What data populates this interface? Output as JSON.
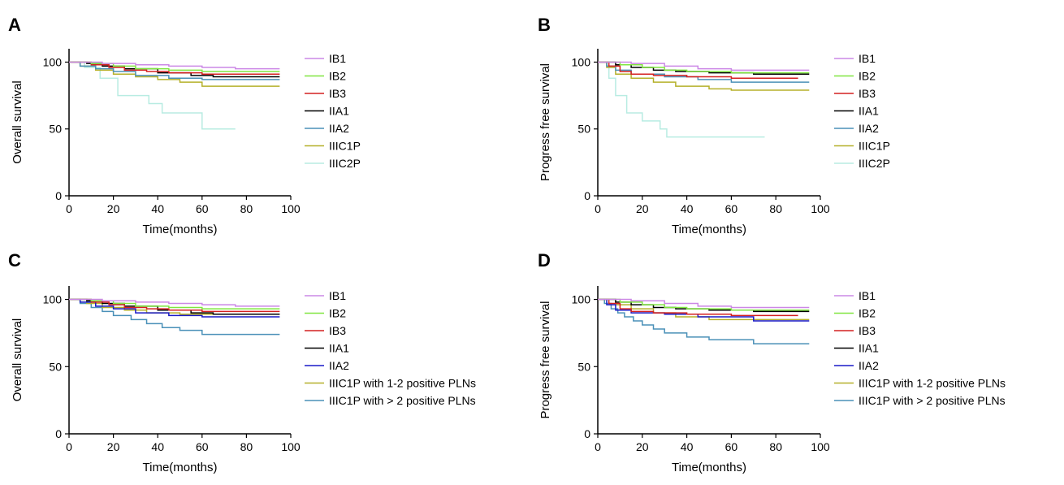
{
  "chart_data": [
    {
      "type": "line",
      "panel": "A",
      "xlabel": "Time(months)",
      "ylabel": "Overall survival",
      "xlim": [
        0,
        100
      ],
      "ylim": [
        0,
        110
      ],
      "xticks": [
        0,
        20,
        40,
        60,
        80,
        100
      ],
      "yticks": [
        0,
        50,
        100
      ],
      "step": true,
      "legend_position": "right",
      "series": [
        {
          "name": "IB1",
          "color": "#cc88e6",
          "x": [
            0,
            15,
            30,
            45,
            60,
            75,
            95
          ],
          "y": [
            100,
            99,
            98,
            97,
            96,
            95,
            95
          ]
        },
        {
          "name": "IB2",
          "color": "#80e640",
          "x": [
            0,
            10,
            20,
            30,
            45,
            60,
            95
          ],
          "y": [
            100,
            99,
            97,
            95,
            94,
            93,
            93
          ]
        },
        {
          "name": "IB3",
          "color": "#d42020",
          "x": [
            0,
            10,
            18,
            25,
            35,
            45,
            60,
            95
          ],
          "y": [
            100,
            98,
            96,
            94,
            93,
            92,
            91,
            91
          ]
        },
        {
          "name": "IIA1",
          "color": "#000000",
          "x": [
            0,
            8,
            15,
            25,
            40,
            55,
            65,
            95
          ],
          "y": [
            100,
            99,
            97,
            95,
            92,
            90,
            89,
            89
          ]
        },
        {
          "name": "IIA2",
          "color": "#4a90b8",
          "x": [
            0,
            5,
            12,
            20,
            30,
            45,
            60,
            95
          ],
          "y": [
            100,
            97,
            95,
            93,
            90,
            88,
            87,
            87
          ]
        },
        {
          "name": "IIIC1P",
          "color": "#b5b02a",
          "x": [
            0,
            5,
            12,
            20,
            30,
            40,
            50,
            60,
            95
          ],
          "y": [
            100,
            97,
            94,
            91,
            89,
            87,
            85,
            82,
            82
          ]
        },
        {
          "name": "IIIC2P",
          "color": "#b8ece2",
          "x": [
            0,
            7,
            14,
            22,
            36,
            42,
            60,
            75
          ],
          "y": [
            100,
            96,
            88,
            75,
            69,
            62,
            50,
            50
          ]
        }
      ]
    },
    {
      "type": "line",
      "panel": "B",
      "xlabel": "Time(months)",
      "ylabel": "Progress free survival",
      "xlim": [
        0,
        100
      ],
      "ylim": [
        0,
        110
      ],
      "xticks": [
        0,
        20,
        40,
        60,
        80,
        100
      ],
      "yticks": [
        0,
        50,
        100
      ],
      "step": true,
      "legend_position": "right",
      "series": [
        {
          "name": "IB1",
          "color": "#cc88e6",
          "x": [
            0,
            15,
            30,
            45,
            60,
            95
          ],
          "y": [
            100,
            99,
            97,
            95,
            94,
            94
          ]
        },
        {
          "name": "IB2",
          "color": "#80e640",
          "x": [
            0,
            10,
            20,
            30,
            40,
            60,
            95
          ],
          "y": [
            100,
            98,
            96,
            94,
            93,
            92,
            92
          ]
        },
        {
          "name": "IB3",
          "color": "#d42020",
          "x": [
            0,
            5,
            10,
            15,
            25,
            40,
            60,
            90
          ],
          "y": [
            100,
            97,
            93,
            91,
            90,
            89,
            88,
            88
          ]
        },
        {
          "name": "IIA1",
          "color": "#000000",
          "x": [
            0,
            8,
            15,
            25,
            35,
            50,
            70,
            95
          ],
          "y": [
            100,
            98,
            96,
            94,
            93,
            92,
            91,
            91
          ]
        },
        {
          "name": "IIA2",
          "color": "#4a90b8",
          "x": [
            0,
            4,
            8,
            15,
            30,
            45,
            60,
            95
          ],
          "y": [
            100,
            97,
            94,
            91,
            89,
            87,
            85,
            85
          ]
        },
        {
          "name": "IIIC1P",
          "color": "#b5b02a",
          "x": [
            0,
            4,
            8,
            15,
            25,
            35,
            50,
            60,
            95
          ],
          "y": [
            100,
            96,
            91,
            88,
            85,
            82,
            80,
            79,
            79
          ]
        },
        {
          "name": "IIIC2P",
          "color": "#b8ece2",
          "x": [
            0,
            5,
            8,
            13,
            20,
            28,
            31,
            75
          ],
          "y": [
            100,
            88,
            75,
            62,
            56,
            50,
            44,
            44
          ]
        }
      ]
    },
    {
      "type": "line",
      "panel": "C",
      "xlabel": "Time(months)",
      "ylabel": "Overall survival",
      "xlim": [
        0,
        100
      ],
      "ylim": [
        0,
        110
      ],
      "xticks": [
        0,
        20,
        40,
        60,
        80,
        100
      ],
      "yticks": [
        0,
        50,
        100
      ],
      "step": true,
      "legend_position": "right",
      "series": [
        {
          "name": "IB1",
          "color": "#cc88e6",
          "x": [
            0,
            15,
            30,
            45,
            60,
            75,
            95
          ],
          "y": [
            100,
            99,
            98,
            97,
            96,
            95,
            95
          ]
        },
        {
          "name": "IB2",
          "color": "#80e640",
          "x": [
            0,
            10,
            20,
            30,
            45,
            60,
            95
          ],
          "y": [
            100,
            99,
            97,
            95,
            94,
            93,
            93
          ]
        },
        {
          "name": "IB3",
          "color": "#d42020",
          "x": [
            0,
            10,
            18,
            25,
            35,
            45,
            60,
            95
          ],
          "y": [
            100,
            98,
            96,
            94,
            93,
            92,
            91,
            91
          ]
        },
        {
          "name": "IIA1",
          "color": "#000000",
          "x": [
            0,
            8,
            15,
            25,
            40,
            55,
            65,
            95
          ],
          "y": [
            100,
            99,
            97,
            95,
            92,
            90,
            89,
            89
          ]
        },
        {
          "name": "IIA2",
          "color": "#1a1ac8",
          "x": [
            0,
            5,
            12,
            20,
            30,
            45,
            60,
            95
          ],
          "y": [
            100,
            98,
            95,
            93,
            90,
            88,
            87,
            87
          ]
        },
        {
          "name": "IIIC1P with 1-2 positive PLNs",
          "color": "#b5b02a",
          "x": [
            0,
            8,
            15,
            25,
            35,
            50,
            95
          ],
          "y": [
            100,
            97,
            94,
            92,
            90,
            89,
            89
          ]
        },
        {
          "name": "IIIC1P with > 2 positive PLNs",
          "color": "#4a90b8",
          "x": [
            0,
            5,
            10,
            15,
            20,
            28,
            35,
            42,
            50,
            60,
            95
          ],
          "y": [
            100,
            97,
            94,
            91,
            88,
            85,
            82,
            79,
            77,
            74,
            74
          ]
        }
      ]
    },
    {
      "type": "line",
      "panel": "D",
      "xlabel": "Time(months)",
      "ylabel": "Progress free survival",
      "xlim": [
        0,
        100
      ],
      "ylim": [
        0,
        110
      ],
      "xticks": [
        0,
        20,
        40,
        60,
        80,
        100
      ],
      "yticks": [
        0,
        50,
        100
      ],
      "step": true,
      "legend_position": "right",
      "series": [
        {
          "name": "IB1",
          "color": "#cc88e6",
          "x": [
            0,
            15,
            30,
            45,
            60,
            95
          ],
          "y": [
            100,
            99,
            97,
            95,
            94,
            94
          ]
        },
        {
          "name": "IB2",
          "color": "#80e640",
          "x": [
            0,
            10,
            20,
            30,
            40,
            60,
            95
          ],
          "y": [
            100,
            98,
            96,
            94,
            93,
            92,
            92
          ]
        },
        {
          "name": "IB3",
          "color": "#d42020",
          "x": [
            0,
            5,
            10,
            15,
            25,
            40,
            60,
            90
          ],
          "y": [
            100,
            97,
            93,
            91,
            90,
            89,
            88,
            88
          ]
        },
        {
          "name": "IIA1",
          "color": "#000000",
          "x": [
            0,
            8,
            15,
            25,
            35,
            50,
            70,
            95
          ],
          "y": [
            100,
            98,
            96,
            94,
            93,
            92,
            91,
            91
          ]
        },
        {
          "name": "IIA2",
          "color": "#1a1ac8",
          "x": [
            0,
            4,
            8,
            15,
            30,
            45,
            70,
            95
          ],
          "y": [
            100,
            96,
            92,
            90,
            89,
            87,
            84,
            84
          ]
        },
        {
          "name": "IIIC1P with 1-2 positive PLNs",
          "color": "#b5b02a",
          "x": [
            0,
            8,
            15,
            25,
            35,
            50,
            95
          ],
          "y": [
            100,
            96,
            93,
            90,
            87,
            85,
            85
          ]
        },
        {
          "name": "IIIC1P with > 2 positive PLNs",
          "color": "#4a90b8",
          "x": [
            0,
            3,
            6,
            9,
            12,
            16,
            20,
            25,
            30,
            40,
            50,
            70,
            95
          ],
          "y": [
            100,
            97,
            93,
            90,
            87,
            84,
            81,
            78,
            75,
            72,
            70,
            67,
            67
          ]
        }
      ]
    }
  ]
}
